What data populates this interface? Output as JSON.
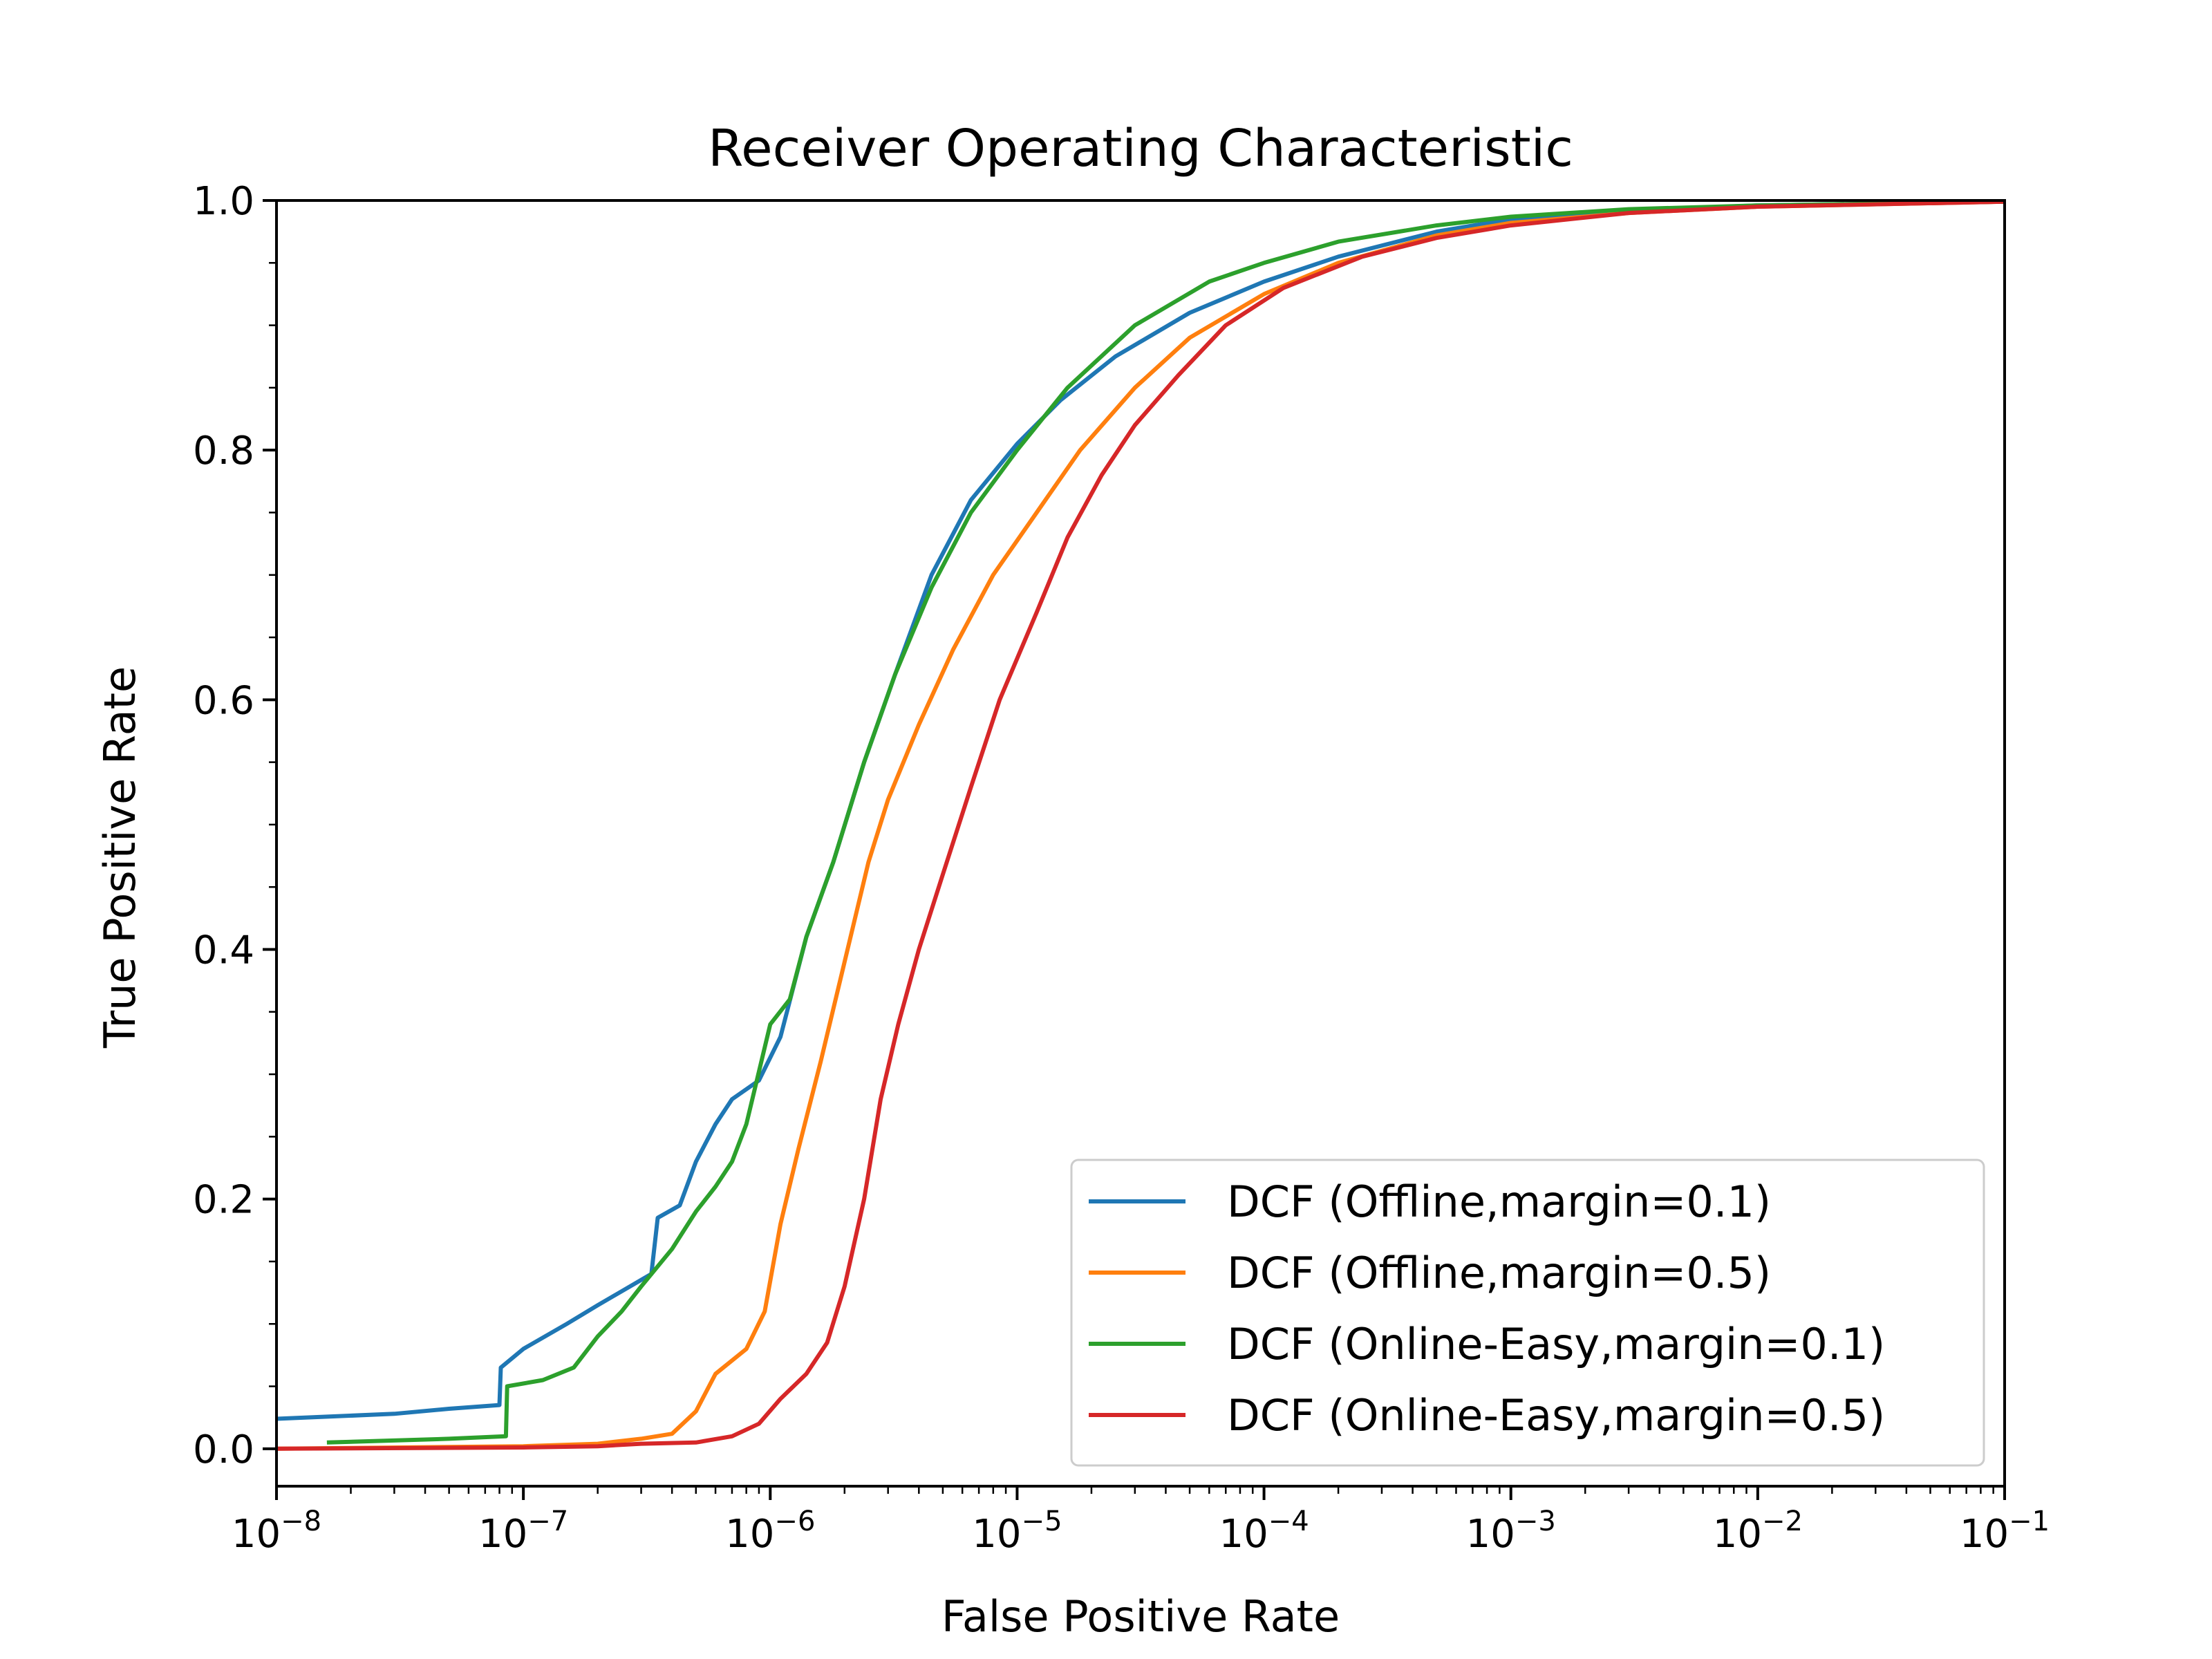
{
  "chart_data": {
    "type": "line",
    "title": "Receiver Operating Characteristic",
    "xlabel": "False Positive Rate",
    "ylabel": "True Positive Rate",
    "xscale": "log",
    "xlim": [
      1e-08,
      0.1
    ],
    "ylim": [
      -0.03,
      1.0
    ],
    "xticks": [
      {
        "base": "10",
        "exp": "−8"
      },
      {
        "base": "10",
        "exp": "−7"
      },
      {
        "base": "10",
        "exp": "−6"
      },
      {
        "base": "10",
        "exp": "−5"
      },
      {
        "base": "10",
        "exp": "−4"
      },
      {
        "base": "10",
        "exp": "−3"
      },
      {
        "base": "10",
        "exp": "−2"
      },
      {
        "base": "10",
        "exp": "−1"
      }
    ],
    "yticks": [
      "0.0",
      "0.2",
      "0.4",
      "0.6",
      "0.8",
      "1.0"
    ],
    "grid": false,
    "legend": "lower-right",
    "series": [
      {
        "name": "DCF (Offline,margin=0.1)",
        "color": "#1f77b4",
        "points": [
          [
            1e-08,
            0.024
          ],
          [
            3e-08,
            0.028
          ],
          [
            5e-08,
            0.032
          ],
          [
            8e-08,
            0.035
          ],
          [
            8.1e-08,
            0.065
          ],
          [
            1e-07,
            0.08
          ],
          [
            1.5e-07,
            0.1
          ],
          [
            2e-07,
            0.115
          ],
          [
            3.3e-07,
            0.14
          ],
          [
            3.5e-07,
            0.185
          ],
          [
            4.3e-07,
            0.195
          ],
          [
            5e-07,
            0.23
          ],
          [
            6e-07,
            0.26
          ],
          [
            7e-07,
            0.28
          ],
          [
            9e-07,
            0.295
          ],
          [
            1.1e-06,
            0.33
          ],
          [
            1.4e-06,
            0.41
          ],
          [
            1.8e-06,
            0.47
          ],
          [
            2.4e-06,
            0.55
          ],
          [
            3.2e-06,
            0.62
          ],
          [
            4.5e-06,
            0.7
          ],
          [
            6.5e-06,
            0.76
          ],
          [
            1e-05,
            0.805
          ],
          [
            1.5e-05,
            0.84
          ],
          [
            2.5e-05,
            0.875
          ],
          [
            5e-05,
            0.91
          ],
          [
            0.0001,
            0.935
          ],
          [
            0.0002,
            0.955
          ],
          [
            0.0005,
            0.975
          ],
          [
            0.001,
            0.985
          ],
          [
            0.003,
            0.992
          ],
          [
            0.01,
            0.996
          ],
          [
            0.1,
            0.999
          ]
        ]
      },
      {
        "name": "DCF (Offline,margin=0.5)",
        "color": "#ff7f0e",
        "points": [
          [
            1e-08,
            0.0
          ],
          [
            1e-07,
            0.002
          ],
          [
            2e-07,
            0.004
          ],
          [
            3e-07,
            0.008
          ],
          [
            4e-07,
            0.012
          ],
          [
            5e-07,
            0.03
          ],
          [
            6e-07,
            0.06
          ],
          [
            8e-07,
            0.08
          ],
          [
            9.5e-07,
            0.11
          ],
          [
            1.1e-06,
            0.18
          ],
          [
            1.3e-06,
            0.24
          ],
          [
            1.6e-06,
            0.31
          ],
          [
            2e-06,
            0.39
          ],
          [
            2.5e-06,
            0.47
          ],
          [
            3e-06,
            0.52
          ],
          [
            4e-06,
            0.58
          ],
          [
            5.5e-06,
            0.64
          ],
          [
            8e-06,
            0.7
          ],
          [
            1.2e-05,
            0.75
          ],
          [
            1.8e-05,
            0.8
          ],
          [
            3e-05,
            0.85
          ],
          [
            5e-05,
            0.89
          ],
          [
            0.0001,
            0.925
          ],
          [
            0.0002,
            0.95
          ],
          [
            0.0005,
            0.972
          ],
          [
            0.001,
            0.982
          ],
          [
            0.003,
            0.99
          ],
          [
            0.01,
            0.995
          ],
          [
            0.1,
            0.999
          ]
        ]
      },
      {
        "name": "DCF (Online-Easy,margin=0.1)",
        "color": "#2ca02c",
        "points": [
          [
            1.6e-08,
            0.005
          ],
          [
            5e-08,
            0.008
          ],
          [
            8.5e-08,
            0.01
          ],
          [
            8.6e-08,
            0.05
          ],
          [
            1.2e-07,
            0.055
          ],
          [
            1.6e-07,
            0.065
          ],
          [
            2e-07,
            0.09
          ],
          [
            2.5e-07,
            0.11
          ],
          [
            3e-07,
            0.13
          ],
          [
            4e-07,
            0.16
          ],
          [
            5e-07,
            0.19
          ],
          [
            6e-07,
            0.21
          ],
          [
            7e-07,
            0.23
          ],
          [
            8e-07,
            0.26
          ],
          [
            1e-06,
            0.34
          ],
          [
            1.2e-06,
            0.36
          ],
          [
            1.4e-06,
            0.41
          ],
          [
            1.8e-06,
            0.47
          ],
          [
            2.4e-06,
            0.55
          ],
          [
            3.2e-06,
            0.62
          ],
          [
            4.5e-06,
            0.69
          ],
          [
            6.5e-06,
            0.75
          ],
          [
            1e-05,
            0.8
          ],
          [
            1.6e-05,
            0.85
          ],
          [
            3e-05,
            0.9
          ],
          [
            6e-05,
            0.935
          ],
          [
            0.0001,
            0.95
          ],
          [
            0.0002,
            0.967
          ],
          [
            0.0005,
            0.98
          ],
          [
            0.001,
            0.987
          ],
          [
            0.003,
            0.993
          ],
          [
            0.01,
            0.996
          ],
          [
            0.1,
            0.999
          ]
        ]
      },
      {
        "name": "DCF (Online-Easy,margin=0.5)",
        "color": "#d62728",
        "points": [
          [
            1e-08,
            0.0
          ],
          [
            1e-07,
            0.001
          ],
          [
            2e-07,
            0.002
          ],
          [
            3e-07,
            0.004
          ],
          [
            5e-07,
            0.005
          ],
          [
            7e-07,
            0.01
          ],
          [
            9e-07,
            0.02
          ],
          [
            1.1e-06,
            0.04
          ],
          [
            1.4e-06,
            0.06
          ],
          [
            1.7e-06,
            0.085
          ],
          [
            2e-06,
            0.13
          ],
          [
            2.4e-06,
            0.2
          ],
          [
            2.8e-06,
            0.28
          ],
          [
            3.3e-06,
            0.34
          ],
          [
            4e-06,
            0.4
          ],
          [
            5e-06,
            0.46
          ],
          [
            6.5e-06,
            0.53
          ],
          [
            8.5e-06,
            0.6
          ],
          [
            1.2e-05,
            0.67
          ],
          [
            1.6e-05,
            0.73
          ],
          [
            2.2e-05,
            0.78
          ],
          [
            3e-05,
            0.82
          ],
          [
            4.5e-05,
            0.86
          ],
          [
            7e-05,
            0.9
          ],
          [
            0.00012,
            0.93
          ],
          [
            0.00025,
            0.955
          ],
          [
            0.0005,
            0.97
          ],
          [
            0.001,
            0.98
          ],
          [
            0.003,
            0.99
          ],
          [
            0.01,
            0.995
          ],
          [
            0.1,
            0.999
          ]
        ]
      }
    ]
  }
}
